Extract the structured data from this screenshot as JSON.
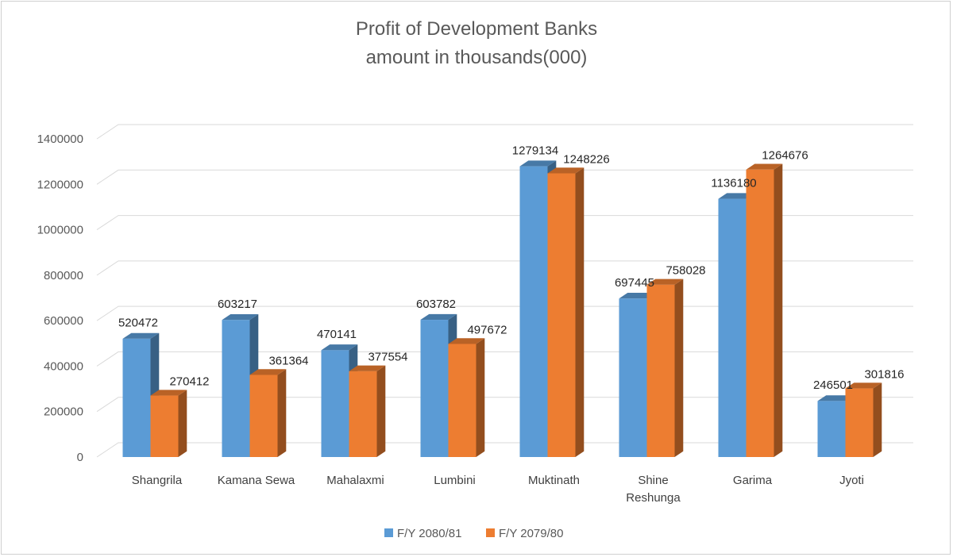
{
  "chart_data": {
    "type": "bar",
    "title": "Profit of Development Banks",
    "subtitle": "amount in thousands(000)",
    "categories": [
      "Shangrila",
      "Kamana Sewa",
      "Mahalaxmi",
      "Lumbini",
      "Muktinath",
      "Shine Reshunga",
      "Garima",
      "Jyoti"
    ],
    "series": [
      {
        "name": "F/Y 2080/81",
        "color": "#5b9bd5",
        "values": [
          520472,
          603217,
          470141,
          603782,
          1279134,
          697445,
          1136180,
          246501
        ]
      },
      {
        "name": "F/Y 2079/80",
        "color": "#ed7d31",
        "values": [
          270412,
          361364,
          377554,
          497672,
          1248226,
          758028,
          1264676,
          301816
        ]
      }
    ],
    "y_ticks": [
      "0",
      "200000",
      "400000",
      "600000",
      "800000",
      "1000000",
      "1200000",
      "1400000"
    ],
    "ylim": [
      0,
      1400000
    ],
    "grid": true,
    "data_labels": true,
    "legend_position": "bottom",
    "style": "3d-clustered-column"
  }
}
